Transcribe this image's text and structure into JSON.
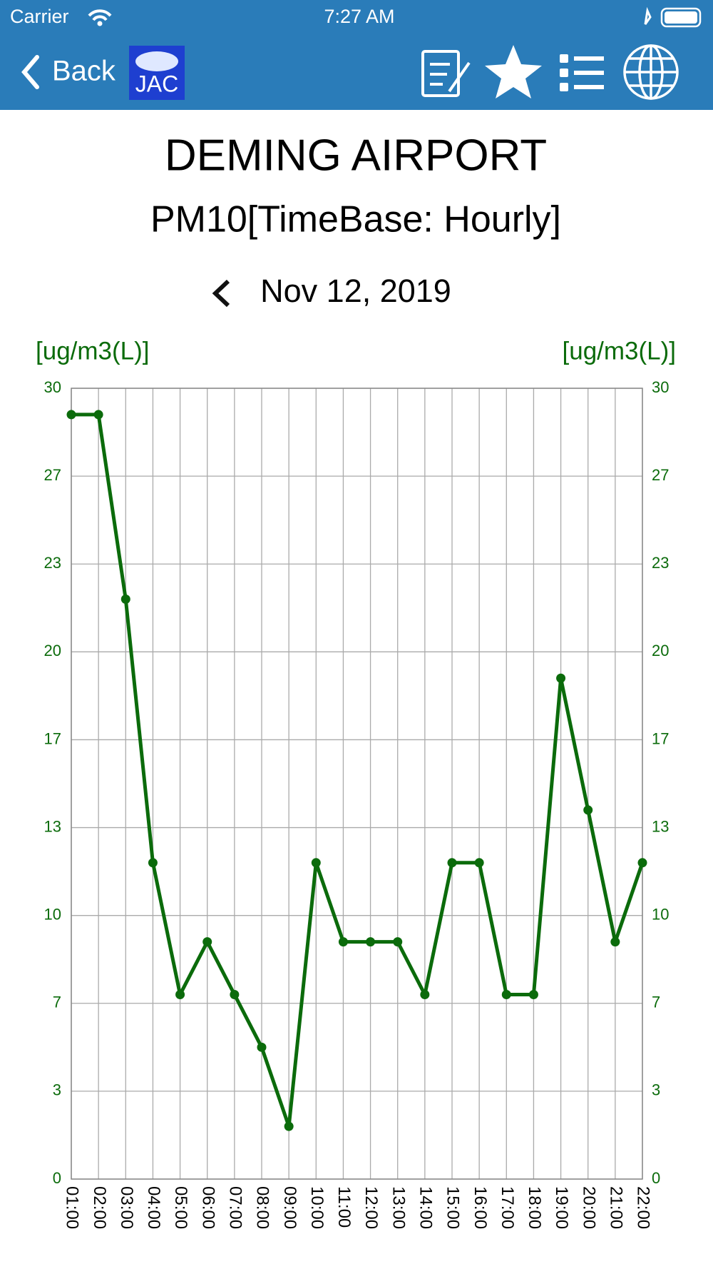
{
  "status_bar": {
    "carrier": "Carrier",
    "time": "7:27 AM"
  },
  "nav": {
    "back": "Back",
    "logo": "JAC"
  },
  "chart_data": {
    "type": "line",
    "title": "DEMING AIRPORT",
    "subtitle": "PM10[TimeBase: Hourly]",
    "date": "Nov 12, 2019",
    "y_label": "[ug/m3(L)]",
    "y2_label": "[ug/m3(L)]",
    "categories": [
      "01:00",
      "02:00",
      "03:00",
      "04:00",
      "05:00",
      "06:00",
      "07:00",
      "08:00",
      "09:00",
      "10:00",
      "11:00",
      "12:00",
      "13:00",
      "14:00",
      "15:00",
      "16:00",
      "17:00",
      "18:00",
      "19:00",
      "20:00",
      "21:00",
      "22:00"
    ],
    "values": [
      29,
      29,
      22,
      12,
      7,
      9,
      7,
      5,
      2,
      12,
      9,
      9,
      9,
      7,
      12,
      12,
      7,
      7,
      19,
      14,
      9,
      12
    ],
    "color": "#0b6b0b",
    "ylim": [
      0,
      30
    ],
    "yticks": [
      0,
      {
        "value": 3.3333333333333335,
        "label": "3"
      },
      {
        "value": 6.666666666666667,
        "label": "7"
      },
      10,
      {
        "value": 13.333333333333334,
        "label": "13"
      },
      {
        "value": 16.666666666666668,
        "label": "17"
      },
      20,
      {
        "value": 23.333333333333332,
        "label": "23"
      },
      {
        "value": 26.666666666666668,
        "label": "27"
      },
      30
    ],
    "y2lim": [
      0,
      30
    ],
    "y2ticks": [
      0,
      {
        "value": 3.3333333333333335,
        "label": "3"
      },
      {
        "value": 6.666666666666667,
        "label": "7"
      },
      10,
      {
        "value": 13.333333333333334,
        "label": "13"
      },
      {
        "value": 16.666666666666668,
        "label": "17"
      },
      20,
      {
        "value": 23.333333333333332,
        "label": "23"
      },
      {
        "value": 26.666666666666668,
        "label": "27"
      },
      30
    ],
    "grid": true
  }
}
